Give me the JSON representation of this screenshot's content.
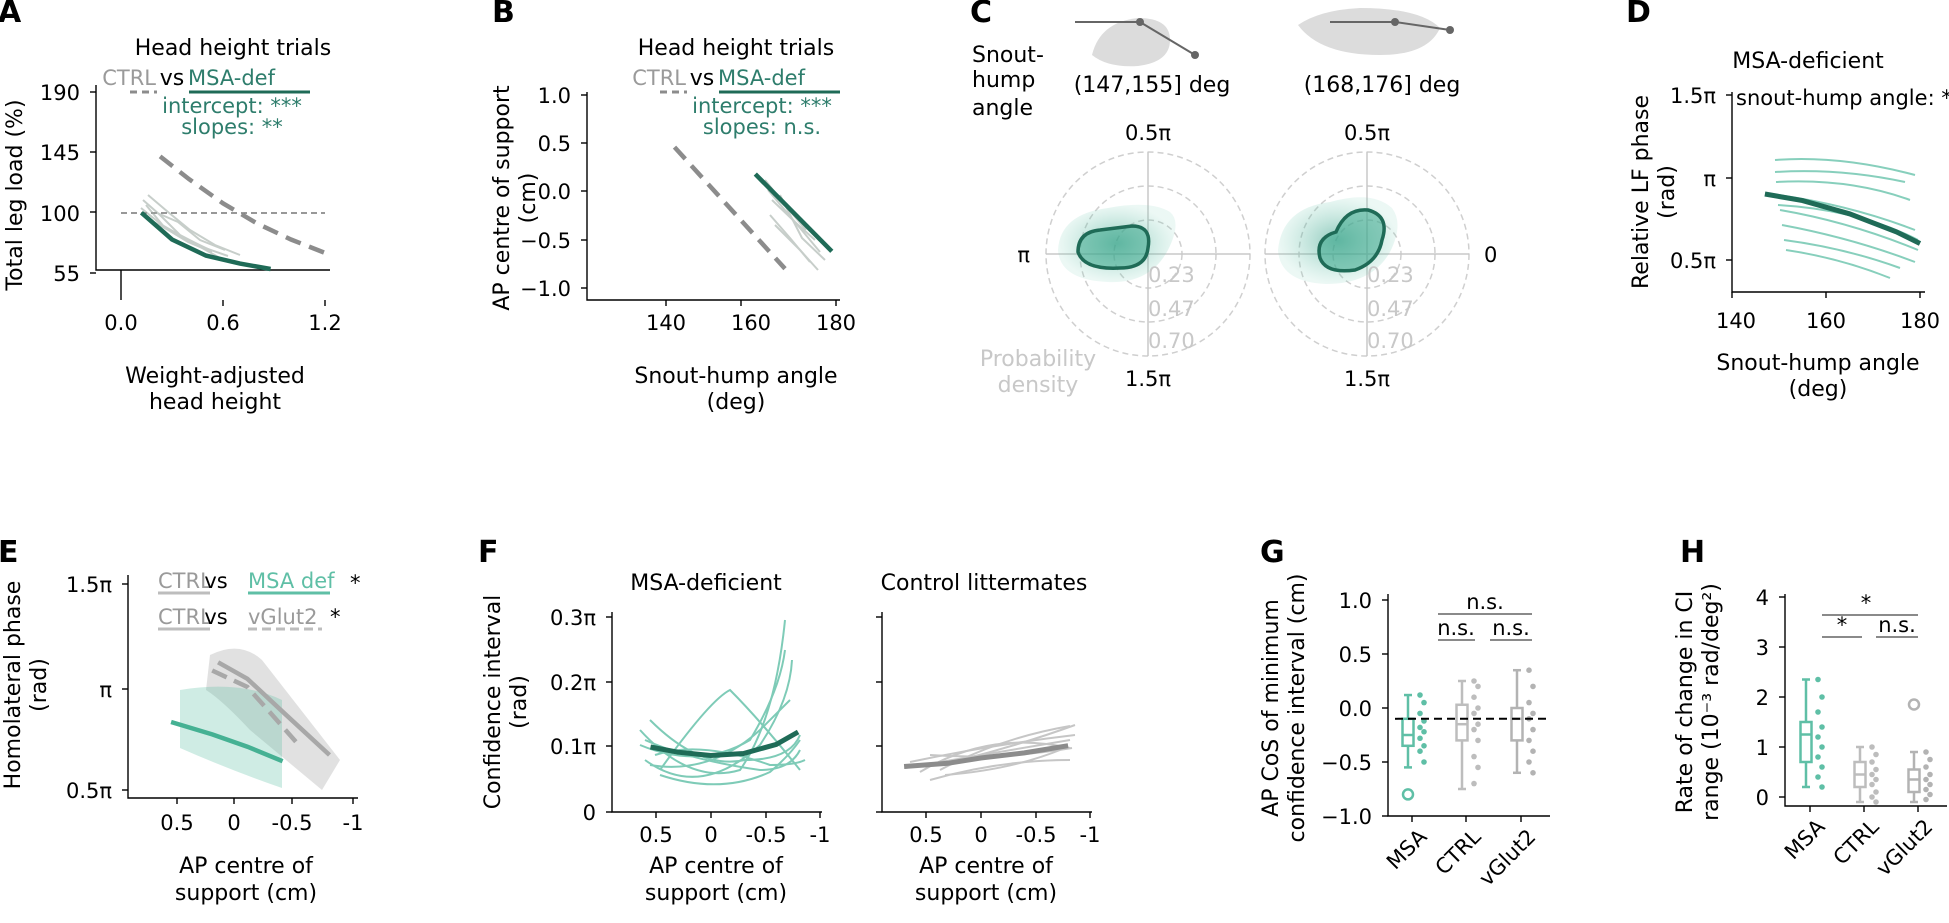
{
  "panels": {
    "A": "A",
    "B": "B",
    "C": "C",
    "D": "D",
    "E": "E",
    "F": "F",
    "G": "G",
    "H": "H"
  },
  "colors": {
    "msa_dark": "#1f6b57",
    "msa_light": "#5fbfa6",
    "ctrl": "#8c8c8c",
    "ctrl_light": "#bdbdbd"
  },
  "A": {
    "title": "Head height trials",
    "legend_ctrl": "CTRL",
    "legend_vs": "vs",
    "legend_msa": "MSA-def",
    "stat_intercept": "intercept: ***",
    "stat_slopes": "slopes: **",
    "ylabel": "Total leg load (%)",
    "xlabel1": "Weight-adjusted",
    "xlabel2": "head height",
    "xticks": [
      "0.0",
      "0.6",
      "1.2"
    ],
    "yticks": [
      "55",
      "100",
      "145",
      "190"
    ]
  },
  "B": {
    "title": "Head height trials",
    "legend_ctrl": "CTRL",
    "legend_vs": "vs",
    "legend_msa": "MSA-def",
    "stat_intercept": "intercept: ***",
    "stat_slopes": "slopes: n.s.",
    "ylabel1": "AP centre of support",
    "ylabel2": "(cm)",
    "xlabel1": "Snout-hump angle",
    "xlabel2": "(deg)",
    "xticks": [
      "140",
      "160",
      "180"
    ],
    "yticks": [
      "1.0",
      "0.5",
      "0.0",
      "−0.5",
      "−1.0"
    ]
  },
  "C": {
    "row_label1": "Snout-",
    "row_label2": "hump",
    "row_label3": "angle",
    "bin1": "(147,155] deg",
    "bin2": "(168,176] deg",
    "top": "0.5π",
    "bottom": "1.5π",
    "left": "π",
    "right": "0",
    "rings": [
      "0.23",
      "0.47",
      "0.70"
    ],
    "density1": "Probability",
    "density2": "density"
  },
  "D": {
    "title": "MSA-deficient",
    "stat": "snout-hump angle: *",
    "ylabel1": "Relative LF phase",
    "ylabel2": "(rad)",
    "xlabel1": "Snout-hump angle",
    "xlabel2": "(deg)",
    "xticks": [
      "140",
      "160",
      "180"
    ],
    "yticks": [
      "1.5π",
      "π",
      "0.5π"
    ]
  },
  "E": {
    "leg1_ctrl": "CTRL",
    "leg1_vs": "vs",
    "leg1_msa": "MSA def",
    "leg1_star": "*",
    "leg2_ctrl": "CTRL",
    "leg2_vs": "vs",
    "leg2_vg": "vGlut2",
    "leg2_star": "*",
    "ylabel1": "Homolateral phase",
    "ylabel2": "(rad)",
    "xlabel1": "AP centre of",
    "xlabel2": "support (cm)",
    "xticks": [
      "0.5",
      "0",
      "-0.5",
      "-1"
    ],
    "yticks": [
      "1.5π",
      "π",
      "0.5π"
    ]
  },
  "F": {
    "title1": "MSA-deficient",
    "title2": "Control littermates",
    "ylabel1": "Confidence interval",
    "ylabel2": "(rad)",
    "xlabel1": "AP centre of",
    "xlabel2": "support (cm)",
    "xticks": [
      "0.5",
      "0",
      "-0.5",
      "-1"
    ],
    "yticks": [
      "0.3π",
      "0.2π",
      "0.1π",
      "0"
    ]
  },
  "G": {
    "ylabel1": "AP CoS of minimum",
    "ylabel2": "confidence interval (cm)",
    "categories": [
      "MSA",
      "CTRL",
      "vGlut2"
    ],
    "yticks": [
      "1.0",
      "0.5",
      "0.0",
      "−0.5",
      "−1.0"
    ],
    "sig_top": "n.s.",
    "sig_left": "n.s.",
    "sig_right": "n.s."
  },
  "H": {
    "ylabel1": "Rate of change in CI",
    "ylabel2": "range (10⁻³ rad/deg²)",
    "categories": [
      "MSA",
      "CTRL",
      "vGlut2"
    ],
    "yticks": [
      "4",
      "3",
      "2",
      "1",
      "0"
    ],
    "sig_top": "*",
    "sig_left": "*",
    "sig_right": "n.s."
  },
  "chart_data": [
    {
      "panel": "A",
      "type": "line",
      "title": "Head height trials",
      "xlabel": "Weight-adjusted head height",
      "ylabel": "Total leg load (%)",
      "xlim": [
        0.0,
        1.2
      ],
      "ylim": [
        40,
        190
      ],
      "series": [
        {
          "name": "CTRL",
          "x": [
            0.23,
            0.4,
            0.6,
            0.8,
            1.0,
            1.2
          ],
          "y": [
            142,
            125,
            107,
            92,
            80,
            70
          ]
        },
        {
          "name": "MSA-def",
          "x": [
            0.12,
            0.3,
            0.5,
            0.7,
            0.88
          ],
          "y": [
            100,
            80,
            68,
            62,
            58
          ]
        }
      ],
      "reference_y": 100
    },
    {
      "panel": "B",
      "type": "line",
      "title": "Head height trials",
      "xlabel": "Snout-hump angle (deg)",
      "ylabel": "AP centre of support (cm)",
      "xlim": [
        130,
        182
      ],
      "ylim": [
        -1.15,
        1.05
      ],
      "series": [
        {
          "name": "CTRL",
          "x": [
            142,
            168
          ],
          "y": [
            0.46,
            -0.8
          ]
        },
        {
          "name": "MSA-def",
          "x": [
            161,
            179
          ],
          "y": [
            0.18,
            -0.62
          ]
        }
      ]
    },
    {
      "panel": "D",
      "type": "line",
      "title": "MSA-deficient",
      "xlabel": "Snout-hump angle (deg)",
      "ylabel": "Relative LF phase (rad)",
      "xlim": [
        138,
        181
      ],
      "series": [
        {
          "name": "MSA-deficient",
          "x": [
            147,
            155,
            165,
            175,
            180
          ],
          "y_pi": [
            0.9,
            0.86,
            0.78,
            0.67,
            0.6
          ]
        }
      ]
    },
    {
      "panel": "E",
      "type": "line",
      "xlabel": "AP centre of support (cm)",
      "ylabel": "Homolateral phase (rad)",
      "xlim": [
        0.8,
        -1.0
      ],
      "series": [
        {
          "name": "MSA def",
          "x": [
            0.55,
            0.2,
            -0.1,
            -0.4
          ],
          "y_pi": [
            0.83,
            0.77,
            0.71,
            0.64
          ]
        },
        {
          "name": "CTRL",
          "x": [
            0.15,
            -0.1,
            -0.4,
            -0.8
          ],
          "y_pi": [
            1.12,
            1.04,
            0.88,
            0.67
          ]
        },
        {
          "name": "vGlut2",
          "x": [
            0.2,
            -0.1,
            -0.35,
            -0.55
          ],
          "y_pi": [
            1.08,
            1.0,
            0.84,
            0.71
          ]
        }
      ]
    },
    {
      "panel": "F",
      "type": "line",
      "title": "MSA-deficient",
      "xlabel": "AP centre of support (cm)",
      "ylabel": "Confidence interval (rad)",
      "xlim": [
        0.8,
        -1.0
      ],
      "ylim_pi": [
        0,
        0.3
      ],
      "series": [
        {
          "name": "MSA-deficient",
          "x": [
            0.55,
            0.3,
            0.0,
            -0.3,
            -0.6,
            -0.8
          ],
          "y_pi": [
            0.1,
            0.092,
            0.087,
            0.09,
            0.104,
            0.123
          ]
        }
      ]
    },
    {
      "panel": "F",
      "type": "line",
      "title": "Control littermates",
      "xlabel": "AP centre of support (cm)",
      "ylabel": "Confidence interval (rad)",
      "xlim": [
        0.8,
        -1.0
      ],
      "ylim_pi": [
        0,
        0.3
      ],
      "series": [
        {
          "name": "Control littermates",
          "x": [
            0.7,
            0.3,
            0.0,
            -0.4,
            -0.8
          ],
          "y_pi": [
            0.07,
            0.075,
            0.083,
            0.091,
            0.102
          ]
        }
      ]
    },
    {
      "panel": "G",
      "type": "scatter",
      "ylabel": "AP CoS of minimum confidence interval (cm)",
      "ylim": [
        -1.0,
        1.0
      ],
      "reference_y": -0.1,
      "categories": [
        "MSA",
        "CTRL",
        "vGlut2"
      ],
      "box": [
        {
          "name": "MSA",
          "q1": -0.35,
          "median": -0.25,
          "q3": -0.1,
          "whisker_low": -0.55,
          "whisker_high": 0.12,
          "outliers": [
            -0.8
          ]
        },
        {
          "name": "CTRL",
          "q1": -0.3,
          "median": -0.15,
          "q3": 0.03,
          "whisker_low": -0.75,
          "whisker_high": 0.25
        },
        {
          "name": "vGlut2",
          "q1": -0.3,
          "median": -0.1,
          "q3": 0.0,
          "whisker_low": -0.6,
          "whisker_high": 0.35
        }
      ],
      "points": [
        [
          -0.05,
          -0.12,
          -0.18,
          -0.22,
          -0.28,
          -0.35,
          -0.4,
          -0.5,
          0.12,
          0.05
        ],
        [
          0.25,
          0.2,
          0.1,
          0.0,
          -0.05,
          -0.15,
          -0.2,
          -0.3,
          -0.45,
          -0.55,
          -0.7
        ],
        [
          0.35,
          0.2,
          0.05,
          -0.05,
          -0.1,
          -0.2,
          -0.3,
          -0.4,
          -0.5,
          -0.6
        ]
      ]
    },
    {
      "panel": "H",
      "type": "scatter",
      "ylabel": "Rate of change in CI range (10⁻³ rad/deg²)",
      "ylim": [
        -0.2,
        4.0
      ],
      "categories": [
        "MSA",
        "CTRL",
        "vGlut2"
      ],
      "box": [
        {
          "name": "MSA",
          "q1": 0.7,
          "median": 1.25,
          "q3": 1.5,
          "whisker_low": 0.2,
          "whisker_high": 2.35
        },
        {
          "name": "CTRL",
          "q1": 0.2,
          "median": 0.45,
          "q3": 0.7,
          "whisker_low": -0.1,
          "whisker_high": 1.0
        },
        {
          "name": "vGlut2",
          "q1": 0.1,
          "median": 0.35,
          "q3": 0.55,
          "whisker_low": -0.1,
          "whisker_high": 0.9,
          "outliers": [
            1.85
          ]
        }
      ],
      "points": [
        [
          2.35,
          2.0,
          1.7,
          1.4,
          1.2,
          1.0,
          0.8,
          0.6,
          0.4,
          0.2
        ],
        [
          1.0,
          0.85,
          0.7,
          0.55,
          0.45,
          0.35,
          0.25,
          0.1,
          0.0,
          -0.1
        ],
        [
          0.9,
          0.75,
          0.6,
          0.45,
          0.35,
          0.25,
          0.15,
          0.05,
          -0.05
        ]
      ]
    }
  ]
}
